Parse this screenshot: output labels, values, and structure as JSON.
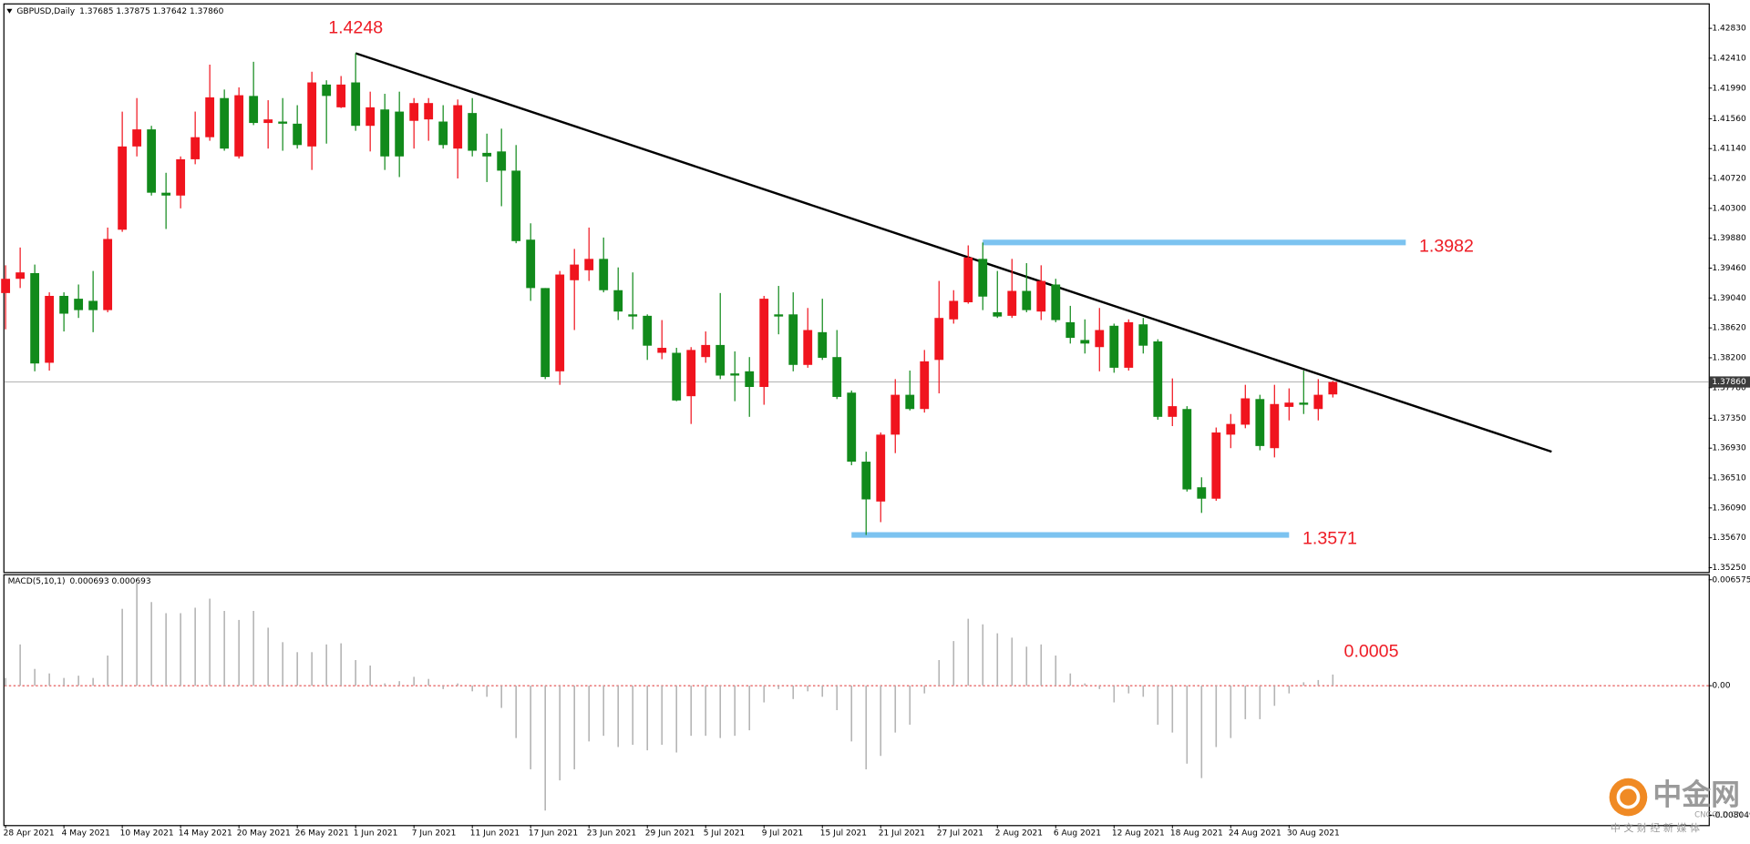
{
  "chart_data": [
    {
      "type": "candlestick",
      "title": "GBPUSD,Daily",
      "ohlc_label": "1.37685 1.37875 1.37642 1.37860",
      "close_label": "1.37860",
      "categories": [
        "28 Apr 2021",
        null,
        null,
        null,
        "4 May 2021",
        null,
        null,
        null,
        "10 May 2021",
        null,
        null,
        null,
        "14 May 2021",
        null,
        null,
        null,
        "20 May 2021",
        null,
        null,
        null,
        "26 May 2021",
        null,
        null,
        null,
        "1 Jun 2021",
        null,
        null,
        null,
        "7 Jun 2021",
        null,
        null,
        null,
        "11 Jun 2021",
        null,
        null,
        null,
        "17 Jun 2021",
        null,
        null,
        null,
        "23 Jun 2021",
        null,
        null,
        null,
        "29 Jun 2021",
        null,
        null,
        null,
        "5 Jul 2021",
        null,
        null,
        null,
        "9 Jul 2021",
        null,
        null,
        null,
        "15 Jul 2021",
        null,
        null,
        null,
        "21 Jul 2021",
        null,
        null,
        null,
        "27 Jul 2021",
        null,
        null,
        null,
        "2 Aug 2021",
        null,
        null,
        null,
        "6 Aug 2021",
        null,
        null,
        null,
        "12 Aug 2021",
        null,
        null,
        null,
        "18 Aug 2021",
        null,
        null,
        null,
        "24 Aug 2021",
        null,
        null,
        null,
        "30 Aug 2021",
        null,
        null,
        null
      ],
      "open": [
        1.3911,
        1.3931,
        1.3939,
        1.3813,
        1.3907,
        1.3903,
        1.39,
        1.3887,
        1.4,
        1.4117,
        1.4141,
        1.4052,
        1.4048,
        1.4099,
        1.413,
        1.4185,
        1.4103,
        1.4188,
        1.415,
        1.4152,
        1.4149,
        1.4117,
        1.4204,
        1.4172,
        1.4207,
        1.4146,
        1.4169,
        1.4166,
        1.4153,
        1.4155,
        1.4152,
        1.4114,
        1.4164,
        1.4108,
        1.411,
        1.4083,
        1.3986,
        1.3918,
        1.3801,
        1.3929,
        1.3943,
        1.3959,
        1.3915,
        1.3881,
        1.3879,
        1.3827,
        1.3827,
        1.3766,
        1.3821,
        1.3838,
        1.3798,
        1.3801,
        1.3779,
        1.3881,
        1.3881,
        1.381,
        1.3856,
        1.3821,
        1.3771,
        1.3674,
        1.3618,
        1.3712,
        1.3768,
        1.3748,
        1.3817,
        1.3874,
        1.3898,
        1.3959,
        1.3884,
        1.3879,
        1.3914,
        1.3885,
        1.3923,
        1.387,
        1.3845,
        1.3835,
        1.3865,
        1.3806,
        1.3867,
        1.3843,
        1.3737,
        1.3748,
        1.3638,
        1.3622,
        1.3712,
        1.3726,
        1.3762,
        1.3693,
        1.3751,
        1.3757,
        1.3748,
        1.37685
      ],
      "high": [
        1.395,
        1.3975,
        1.3951,
        1.3912,
        1.3912,
        1.3923,
        1.3942,
        1.4003,
        1.4166,
        1.4185,
        1.4146,
        1.408,
        1.4103,
        1.4166,
        1.4232,
        1.4197,
        1.42,
        1.4236,
        1.4182,
        1.4185,
        1.4175,
        1.4222,
        1.421,
        1.4216,
        1.4248,
        1.4194,
        1.4191,
        1.4194,
        1.4185,
        1.4185,
        1.4175,
        1.4183,
        1.4185,
        1.4135,
        1.4142,
        1.4119,
        1.4009,
        1.3918,
        1.3942,
        1.3973,
        1.4003,
        1.3989,
        1.3947,
        1.394,
        1.3881,
        1.3873,
        1.3834,
        1.3835,
        1.3857,
        1.3911,
        1.3829,
        1.3821,
        1.3907,
        1.3921,
        1.3912,
        1.389,
        1.3903,
        1.3859,
        1.3774,
        1.3688,
        1.3715,
        1.379,
        1.3802,
        1.3831,
        1.3928,
        1.3915,
        1.3978,
        1.3982,
        1.3942,
        1.3959,
        1.3953,
        1.395,
        1.3931,
        1.3893,
        1.3874,
        1.389,
        1.3868,
        1.3874,
        1.3876,
        1.3846,
        1.3791,
        1.3752,
        1.3652,
        1.3722,
        1.3741,
        1.3782,
        1.3768,
        1.3782,
        1.3777,
        1.3802,
        1.379,
        1.37875
      ],
      "low": [
        1.386,
        1.3918,
        1.3801,
        1.3802,
        1.3857,
        1.3876,
        1.3856,
        1.3884,
        1.3997,
        1.4103,
        1.4048,
        1.4001,
        1.403,
        1.4092,
        1.4125,
        1.4111,
        1.41,
        1.4147,
        1.4114,
        1.4111,
        1.4114,
        1.4084,
        1.4121,
        1.4171,
        1.4139,
        1.411,
        1.4084,
        1.4074,
        1.4114,
        1.4125,
        1.4114,
        1.4072,
        1.4103,
        1.4067,
        1.4033,
        1.3981,
        1.39,
        1.379,
        1.3782,
        1.3859,
        1.3928,
        1.3912,
        1.3873,
        1.386,
        1.3817,
        1.3818,
        1.3759,
        1.3727,
        1.3813,
        1.379,
        1.3759,
        1.3737,
        1.3754,
        1.3853,
        1.3801,
        1.3806,
        1.3817,
        1.3762,
        1.3669,
        1.3571,
        1.3589,
        1.3686,
        1.3746,
        1.3743,
        1.377,
        1.3868,
        1.3896,
        1.3887,
        1.3876,
        1.3876,
        1.3884,
        1.3873,
        1.387,
        1.384,
        1.3826,
        1.3801,
        1.3799,
        1.3802,
        1.3826,
        1.3733,
        1.3724,
        1.3632,
        1.3602,
        1.3619,
        1.3693,
        1.3721,
        1.369,
        1.368,
        1.3732,
        1.3741,
        1.3732,
        1.37642
      ],
      "close": [
        1.3931,
        1.394,
        1.3812,
        1.3907,
        1.3882,
        1.3887,
        1.3887,
        1.3987,
        1.4117,
        1.4141,
        1.4052,
        1.4048,
        1.4099,
        1.413,
        1.4186,
        1.4114,
        1.4189,
        1.415,
        1.4155,
        1.4149,
        1.4119,
        1.4207,
        1.4188,
        1.4204,
        1.4146,
        1.4172,
        1.4103,
        1.4103,
        1.4178,
        1.4178,
        1.4119,
        1.4175,
        1.4111,
        1.4103,
        1.4083,
        1.3984,
        1.3918,
        1.3793,
        1.3937,
        1.3951,
        1.3959,
        1.3915,
        1.3885,
        1.3878,
        1.3837,
        1.3834,
        1.376,
        1.3831,
        1.3838,
        1.3795,
        1.3795,
        1.3779,
        1.3903,
        1.3878,
        1.381,
        1.3859,
        1.382,
        1.3765,
        1.3674,
        1.3621,
        1.3712,
        1.3768,
        1.3748,
        1.3815,
        1.3876,
        1.39,
        1.3961,
        1.3906,
        1.3878,
        1.3914,
        1.3887,
        1.3928,
        1.3873,
        1.3848,
        1.384,
        1.3859,
        1.3806,
        1.387,
        1.3837,
        1.3737,
        1.3752,
        1.3635,
        1.3622,
        1.3715,
        1.3727,
        1.3763,
        1.3696,
        1.3755,
        1.3757,
        1.3754,
        1.3768,
        1.3786
      ],
      "up_color": "#f0141e",
      "down_color": "#118a1b",
      "ylim": [
        1.3519,
        1.4315
      ],
      "yticks": [
        {
          "value": 1.4283,
          "label": "1.42830"
        },
        {
          "value": 1.4241,
          "label": "1.42410"
        },
        {
          "value": 1.4199,
          "label": "1.41990"
        },
        {
          "value": 1.4156,
          "label": "1.41560"
        },
        {
          "value": 1.4114,
          "label": "1.41140"
        },
        {
          "value": 1.4072,
          "label": "1.40720"
        },
        {
          "value": 1.403,
          "label": "1.40300"
        },
        {
          "value": 1.3988,
          "label": "1.39880"
        },
        {
          "value": 1.3946,
          "label": "1.39460"
        },
        {
          "value": 1.3904,
          "label": "1.39040"
        },
        {
          "value": 1.3862,
          "label": "1.38620"
        },
        {
          "value": 1.382,
          "label": "1.38200"
        },
        {
          "value": 1.3778,
          "label": "1.37780"
        },
        {
          "value": 1.3735,
          "label": "1.37350"
        },
        {
          "value": 1.3693,
          "label": "1.36930"
        },
        {
          "value": 1.3651,
          "label": "1.36510"
        },
        {
          "value": 1.3609,
          "label": "1.36090"
        },
        {
          "value": 1.3567,
          "label": "1.35670"
        },
        {
          "value": 1.3525,
          "label": "1.35250"
        }
      ],
      "trendline": {
        "x": [
          24,
          106
        ],
        "y": [
          1.4248,
          1.3688
        ],
        "color": "#000000"
      },
      "levels": [
        {
          "value": 1.3982,
          "x": [
            67,
            96
          ]
        },
        {
          "value": 1.3571,
          "x": [
            58,
            88
          ]
        }
      ],
      "level_color": "#7cc3f0",
      "annotations": [
        {
          "value": 1.4248,
          "x": 24
        }
      ],
      "annotation_color": "#ee1c25"
    },
    {
      "type": "bar",
      "title": "MACD(5,10,1)",
      "values_label": "0.000693 0.000693",
      "values": [
        0.00048,
        0.00256,
        0.00104,
        0.00076,
        0.00048,
        0.00062,
        0.00048,
        0.00187,
        0.00477,
        0.00644,
        0.00519,
        0.0045,
        0.0045,
        0.00484,
        0.0054,
        0.00464,
        0.00408,
        0.00464,
        0.0036,
        0.0027,
        0.00208,
        0.00208,
        0.00256,
        0.00263,
        0.00159,
        0.00125,
        0.00014,
        0.00028,
        0.00055,
        0.00042,
        -0.00021,
        0.00014,
        -0.00035,
        -0.00069,
        -0.00138,
        -0.00325,
        -0.00519,
        -0.00775,
        -0.00588,
        -0.00519,
        -0.00346,
        -0.00311,
        -0.00381,
        -0.00367,
        -0.00401,
        -0.00367,
        -0.00415,
        -0.00311,
        -0.00311,
        -0.00325,
        -0.00311,
        -0.00277,
        -0.00104,
        -0.00021,
        -0.00083,
        -0.00035,
        -0.00069,
        -0.00152,
        -0.00346,
        -0.00519,
        -0.00436,
        -0.00291,
        -0.00242,
        -0.00048,
        0.00159,
        0.00277,
        0.00415,
        0.00381,
        0.00325,
        0.00298,
        0.00242,
        0.00256,
        0.00187,
        0.00076,
        0.00014,
        -0.00021,
        -0.00104,
        -0.00048,
        -0.00069,
        -0.00242,
        -0.00291,
        -0.00484,
        -0.00574,
        -0.00381,
        -0.00325,
        -0.00208,
        -0.00208,
        -0.00125,
        -0.00048,
        0.00021,
        0.00035,
        0.000693
      ],
      "color": "#b4b4b4",
      "zero_line_color": "#e03030",
      "ylim": [
        -0.00865,
        0.00692
      ],
      "yticks": [
        0.006575,
        {
          "value": 0,
          "label": "0.00"
        },
        -0.008049
      ],
      "annotations": [
        {
          "value": 0.0005,
          "x": 91
        }
      ],
      "annotation_color": "#ee1c25"
    }
  ],
  "watermark": {
    "name": "中金网",
    "domain": "CNGOLD.CN",
    "tagline": "中 文 财 经 新 媒 体"
  }
}
